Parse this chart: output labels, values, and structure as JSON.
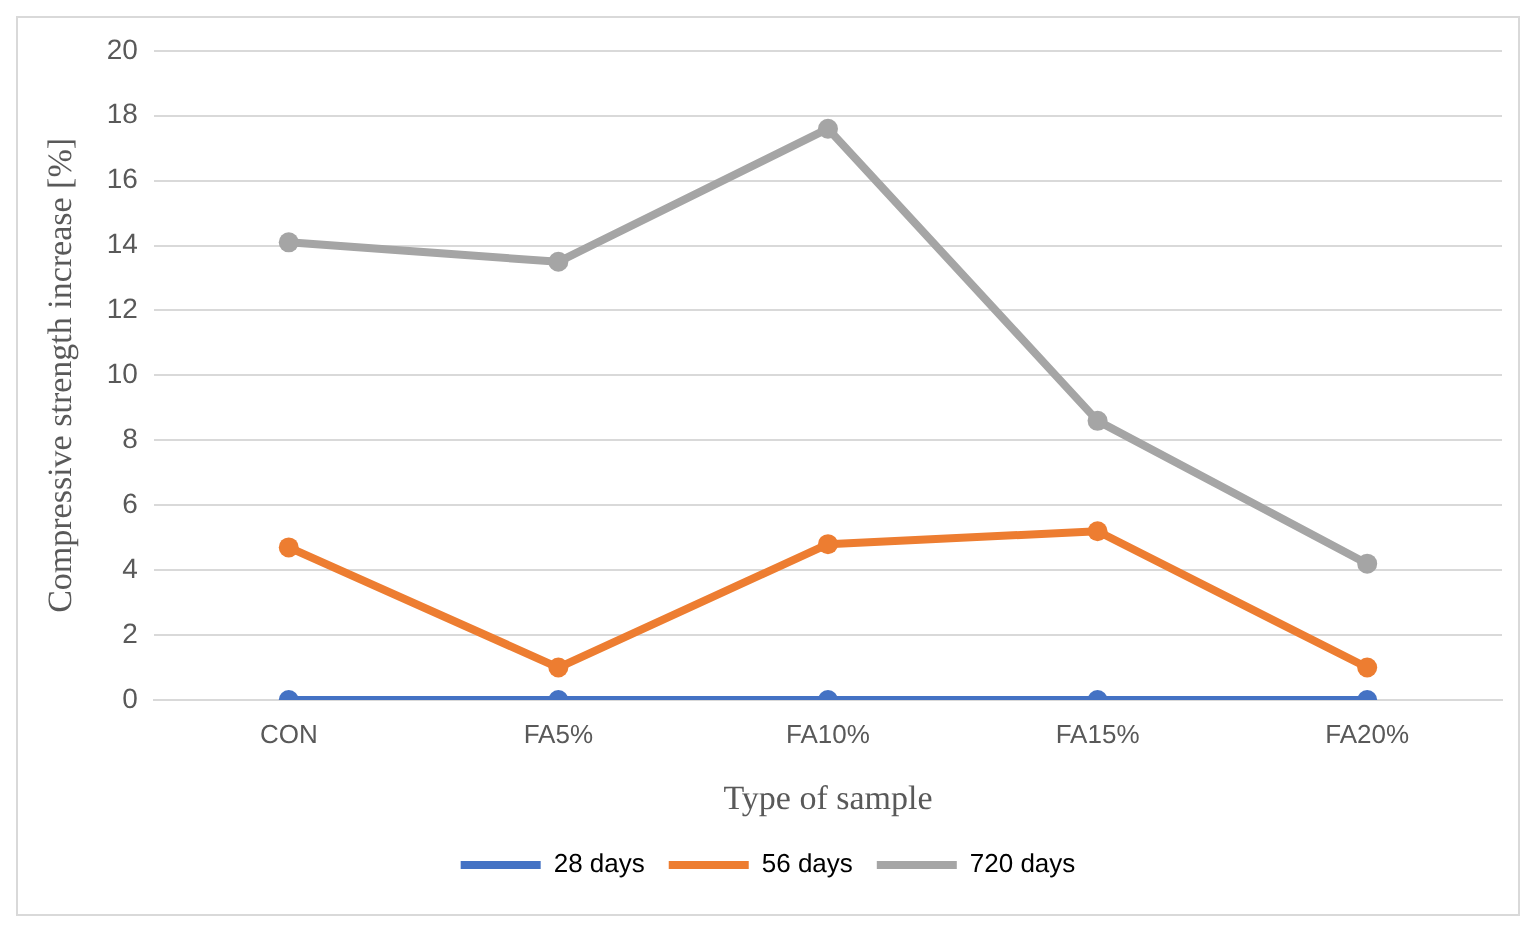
{
  "chart_data": {
    "type": "line",
    "xlabel": "Type of sample",
    "ylabel": "Compressive strength increase [%]",
    "categories": [
      "CON",
      "FA5%",
      "FA10%",
      "FA15%",
      "FA20%"
    ],
    "series": [
      {
        "name": "28 days",
        "color": "#4472c4",
        "values": [
          0,
          0,
          0,
          0,
          0
        ]
      },
      {
        "name": "56 days",
        "color": "#ed7d31",
        "values": [
          4.7,
          1.0,
          4.8,
          5.2,
          1.0
        ]
      },
      {
        "name": "720 days",
        "color": "#a5a5a5",
        "values": [
          14.1,
          13.5,
          17.6,
          8.6,
          4.2
        ]
      }
    ],
    "ylim": [
      0,
      20
    ],
    "yticks": [
      0,
      2,
      4,
      6,
      8,
      10,
      12,
      14,
      16,
      18,
      20
    ],
    "grid": "y",
    "legend": "bottom",
    "marker": "circle",
    "line_style": "solid"
  }
}
